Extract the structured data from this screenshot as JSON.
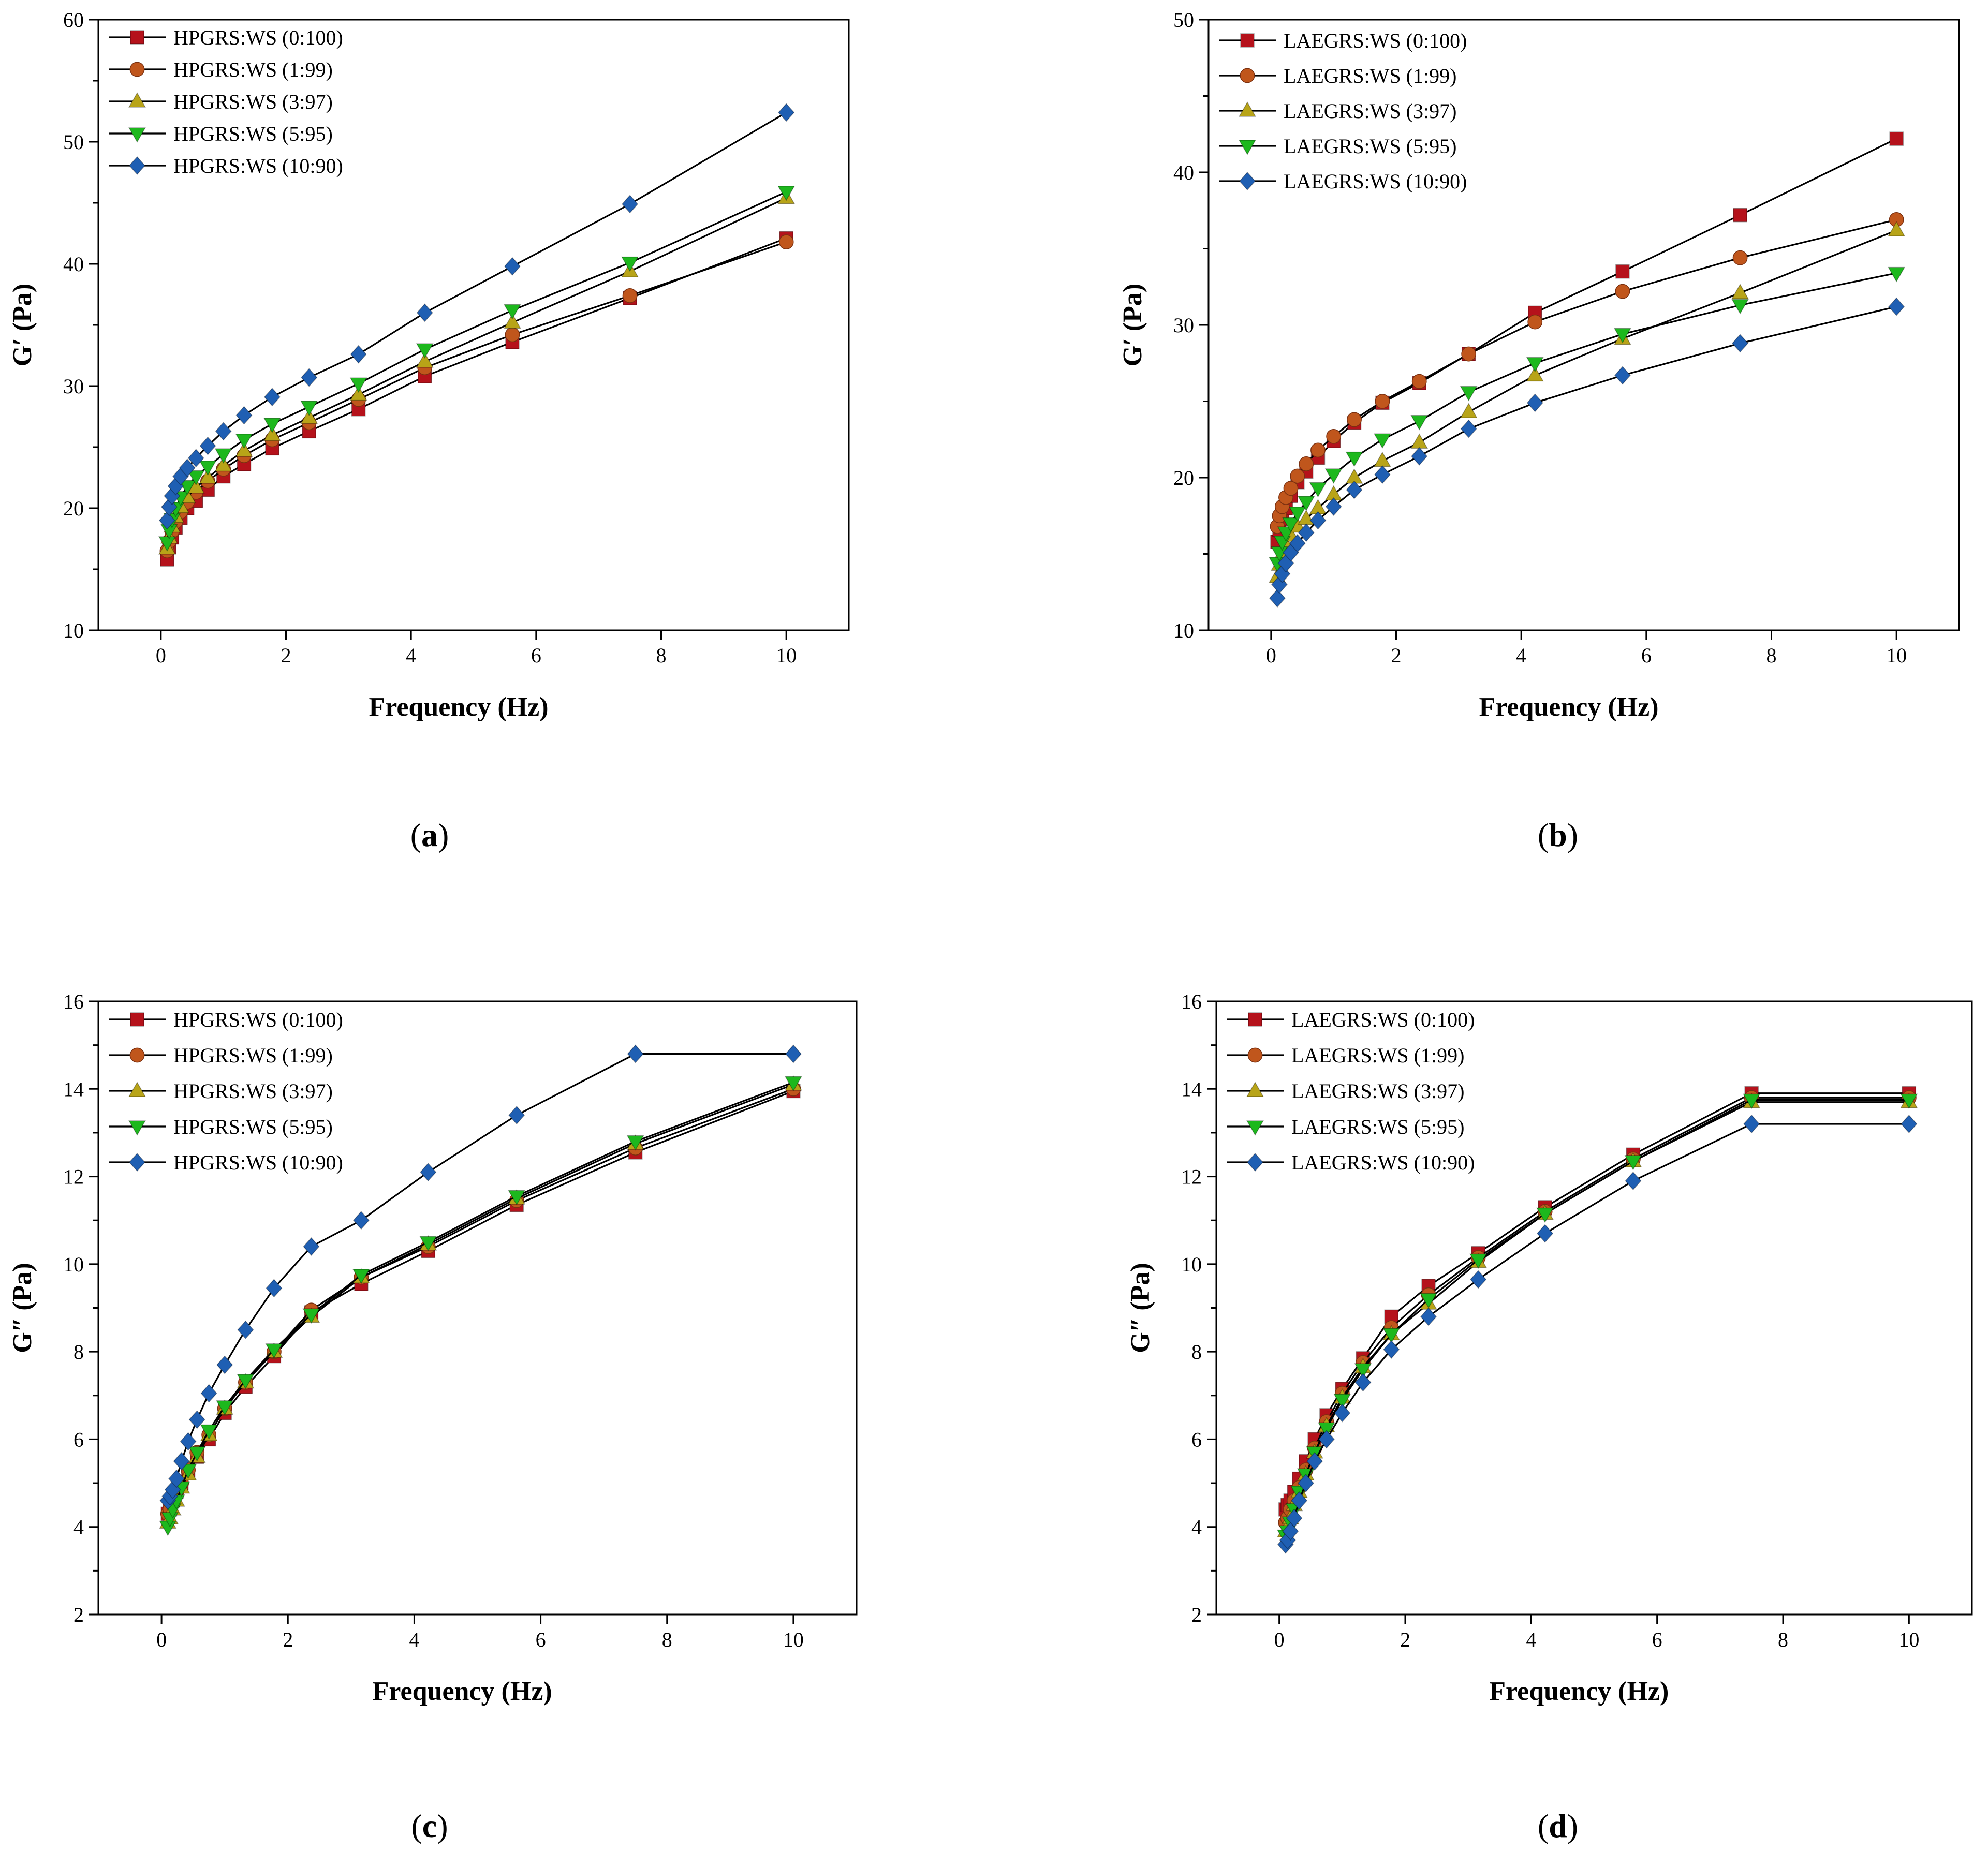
{
  "colors": {
    "series": [
      "#B5121B",
      "#C0561C",
      "#B8A418",
      "#1DB81D",
      "#1F5FB3"
    ],
    "line": "#000000"
  },
  "chart_data": [
    {
      "type": "line",
      "panel_label": "a",
      "xlabel": "Frequency (Hz)",
      "ylabel": "G′ (Pa)",
      "xlim": [
        -1,
        11
      ],
      "ylim": [
        10,
        60
      ],
      "xticks": [
        0,
        2,
        4,
        6,
        8,
        10
      ],
      "yticks": [
        10,
        20,
        30,
        40,
        50,
        60
      ],
      "legend_position": "top-left",
      "x": [
        0.1,
        0.133,
        0.178,
        0.237,
        0.316,
        0.422,
        0.562,
        0.75,
        1.0,
        1.33,
        1.78,
        2.37,
        3.16,
        4.22,
        5.62,
        7.5,
        10.0
      ],
      "series": [
        {
          "name": "HPGRS:WS (0:100)",
          "marker": "square",
          "values": [
            15.8,
            16.8,
            17.6,
            18.4,
            19.2,
            20.0,
            20.6,
            21.5,
            22.6,
            23.6,
            24.9,
            26.3,
            28.1,
            30.8,
            33.6,
            37.2,
            42.1
          ]
        },
        {
          "name": "HPGRS:WS (1:99)",
          "marker": "circle",
          "values": [
            16.5,
            17.3,
            18.1,
            18.9,
            19.7,
            20.5,
            21.3,
            22.2,
            23.2,
            24.3,
            25.6,
            27.0,
            28.9,
            31.5,
            34.2,
            37.4,
            41.8
          ]
        },
        {
          "name": "HPGRS:WS (3:97)",
          "marker": "triangle-up",
          "values": [
            16.7,
            17.6,
            18.5,
            19.3,
            20.1,
            20.9,
            21.7,
            22.5,
            23.5,
            24.7,
            26.0,
            27.4,
            29.3,
            32.0,
            35.2,
            39.4,
            45.4
          ]
        },
        {
          "name": "HPGRS:WS (5:95)",
          "marker": "triangle-down",
          "values": [
            17.2,
            18.2,
            19.1,
            20.0,
            20.9,
            21.8,
            22.6,
            23.4,
            24.4,
            25.6,
            26.9,
            28.3,
            30.2,
            33.0,
            36.2,
            40.1,
            45.9
          ]
        },
        {
          "name": "HPGRS:WS (10:90)",
          "marker": "diamond",
          "values": [
            19.0,
            20.1,
            21.0,
            21.8,
            22.6,
            23.3,
            24.1,
            25.1,
            26.3,
            27.6,
            29.1,
            30.7,
            32.6,
            36.0,
            39.8,
            44.9,
            52.4
          ]
        }
      ]
    },
    {
      "type": "line",
      "panel_label": "b",
      "xlabel": "Frequency (Hz)",
      "ylabel": "G′ (Pa)",
      "xlim": [
        -1,
        11
      ],
      "ylim": [
        10,
        50
      ],
      "xticks": [
        0,
        2,
        4,
        6,
        8,
        10
      ],
      "yticks": [
        10,
        20,
        30,
        40,
        50
      ],
      "legend_position": "top-left",
      "x": [
        0.1,
        0.133,
        0.178,
        0.237,
        0.316,
        0.422,
        0.562,
        0.75,
        1.0,
        1.33,
        1.78,
        2.37,
        3.16,
        4.22,
        5.62,
        7.5,
        10.0
      ],
      "series": [
        {
          "name": "LAEGRS:WS (0:100)",
          "marker": "square",
          "values": [
            15.8,
            16.6,
            17.3,
            18.0,
            18.8,
            19.7,
            20.4,
            21.3,
            22.4,
            23.6,
            24.9,
            26.2,
            28.1,
            30.8,
            33.5,
            37.2,
            42.2
          ]
        },
        {
          "name": "LAEGRS:WS (1:99)",
          "marker": "circle",
          "values": [
            16.8,
            17.5,
            18.1,
            18.7,
            19.3,
            20.1,
            20.9,
            21.8,
            22.7,
            23.8,
            25.0,
            26.3,
            28.1,
            30.2,
            32.2,
            34.4,
            36.9
          ]
        },
        {
          "name": "LAEGRS:WS (3:97)",
          "marker": "triangle-up",
          "values": [
            13.5,
            14.3,
            15.0,
            15.6,
            16.2,
            16.8,
            17.3,
            18.0,
            18.9,
            20.0,
            21.1,
            22.3,
            24.3,
            26.7,
            29.1,
            32.1,
            36.2
          ]
        },
        {
          "name": "LAEGRS:WS (5:95)",
          "marker": "triangle-down",
          "values": [
            14.4,
            15.1,
            15.8,
            16.4,
            17.0,
            17.7,
            18.4,
            19.3,
            20.2,
            21.3,
            22.5,
            23.7,
            25.6,
            27.5,
            29.4,
            31.3,
            33.4
          ]
        },
        {
          "name": "LAEGRS:WS (10:90)",
          "marker": "diamond",
          "values": [
            12.1,
            13.0,
            13.7,
            14.4,
            15.1,
            15.7,
            16.4,
            17.2,
            18.1,
            19.2,
            20.2,
            21.4,
            23.2,
            24.9,
            26.7,
            28.8,
            31.2
          ]
        }
      ]
    },
    {
      "type": "line",
      "panel_label": "c",
      "xlabel": "Frequency (Hz)",
      "ylabel": "G″ (Pa)",
      "xlim": [
        -1,
        11
      ],
      "ylim": [
        2,
        16
      ],
      "xticks": [
        0,
        2,
        4,
        6,
        8,
        10
      ],
      "yticks": [
        2,
        4,
        6,
        8,
        10,
        12,
        14,
        16
      ],
      "legend_position": "top-left",
      "x": [
        0.1,
        0.133,
        0.178,
        0.237,
        0.316,
        0.422,
        0.562,
        0.75,
        1.0,
        1.33,
        1.78,
        2.37,
        3.16,
        4.22,
        5.62,
        7.5,
        10.0
      ],
      "series": [
        {
          "name": "HPGRS:WS (0:100)",
          "marker": "square",
          "values": [
            4.3,
            4.4,
            4.6,
            4.8,
            5.0,
            5.3,
            5.6,
            6.0,
            6.6,
            7.2,
            7.9,
            8.9,
            9.55,
            10.3,
            11.35,
            12.55,
            13.95
          ]
        },
        {
          "name": "HPGRS:WS (1:99)",
          "marker": "circle",
          "values": [
            4.3,
            4.4,
            4.6,
            4.8,
            5.0,
            5.3,
            5.7,
            6.1,
            6.7,
            7.3,
            8.0,
            8.95,
            9.7,
            10.4,
            11.45,
            12.65,
            14.0
          ]
        },
        {
          "name": "HPGRS:WS (3:97)",
          "marker": "triangle-up",
          "values": [
            4.1,
            4.2,
            4.4,
            4.6,
            4.9,
            5.2,
            5.6,
            6.1,
            6.7,
            7.3,
            8.0,
            8.8,
            9.7,
            10.45,
            11.5,
            12.75,
            14.1
          ]
        },
        {
          "name": "HPGRS:WS (5:95)",
          "marker": "triangle-down",
          "values": [
            4.0,
            4.2,
            4.4,
            4.6,
            4.9,
            5.3,
            5.7,
            6.2,
            6.75,
            7.35,
            8.05,
            8.85,
            9.75,
            10.5,
            11.55,
            12.8,
            14.15
          ]
        },
        {
          "name": "HPGRS:WS (10:90)",
          "marker": "diamond",
          "values": [
            4.6,
            4.7,
            4.85,
            5.1,
            5.5,
            5.95,
            6.45,
            7.05,
            7.7,
            8.5,
            9.45,
            10.4,
            11.0,
            12.1,
            13.4,
            14.8,
            14.8
          ]
        }
      ]
    },
    {
      "type": "line",
      "panel_label": "d",
      "xlabel": "Frequency (Hz)",
      "ylabel": "G″ (Pa)",
      "xlim": [
        -1,
        11
      ],
      "ylim": [
        2,
        16
      ],
      "xticks": [
        0,
        2,
        4,
        6,
        8,
        10
      ],
      "yticks": [
        2,
        4,
        6,
        8,
        10,
        12,
        14,
        16
      ],
      "legend_position": "top-left",
      "x": [
        0.1,
        0.133,
        0.178,
        0.237,
        0.316,
        0.422,
        0.562,
        0.75,
        1.0,
        1.33,
        1.78,
        2.37,
        3.16,
        4.22,
        5.62,
        7.5,
        10.0
      ],
      "series": [
        {
          "name": "LAEGRS:WS (0:100)",
          "marker": "square",
          "values": [
            4.4,
            4.5,
            4.6,
            4.8,
            5.1,
            5.5,
            6.0,
            6.55,
            7.15,
            7.85,
            8.8,
            9.5,
            10.25,
            11.3,
            12.5,
            13.9,
            13.9
          ]
        },
        {
          "name": "LAEGRS:WS (1:99)",
          "marker": "circle",
          "values": [
            4.1,
            4.2,
            4.4,
            4.6,
            4.9,
            5.3,
            5.8,
            6.4,
            7.05,
            7.75,
            8.55,
            9.3,
            10.15,
            11.2,
            12.4,
            13.8,
            13.8
          ]
        },
        {
          "name": "LAEGRS:WS (3:97)",
          "marker": "triangle-up",
          "values": [
            3.9,
            4.0,
            4.2,
            4.5,
            4.8,
            5.2,
            5.7,
            6.3,
            6.95,
            7.65,
            8.4,
            9.1,
            10.05,
            11.15,
            12.35,
            13.7,
            13.7
          ]
        },
        {
          "name": "LAEGRS:WS (5:95)",
          "marker": "triangle-down",
          "values": [
            3.8,
            3.9,
            4.1,
            4.4,
            4.8,
            5.2,
            5.7,
            6.25,
            6.9,
            7.6,
            8.4,
            9.2,
            10.1,
            11.15,
            12.35,
            13.75,
            13.75
          ]
        },
        {
          "name": "LAEGRS:WS (10:90)",
          "marker": "diamond",
          "values": [
            3.6,
            3.7,
            3.9,
            4.2,
            4.6,
            5.0,
            5.5,
            6.0,
            6.6,
            7.3,
            8.05,
            8.8,
            9.65,
            10.7,
            11.9,
            13.2,
            13.2
          ]
        }
      ]
    }
  ]
}
